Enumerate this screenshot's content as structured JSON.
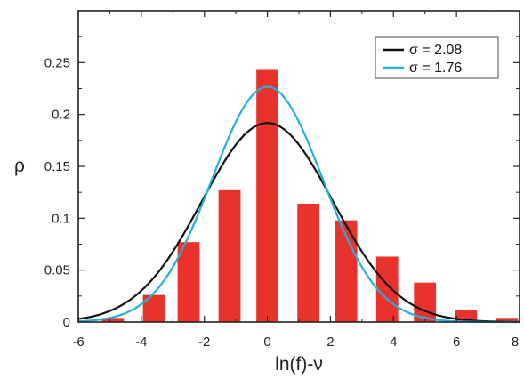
{
  "chart_data": {
    "type": "bar",
    "xlabel": "ln(f)-ν",
    "ylabel": "ρ",
    "xlim": [
      -6,
      8
    ],
    "ylim": [
      0,
      0.3
    ],
    "x_ticks": [
      -6,
      -4,
      -2,
      0,
      2,
      4,
      6,
      8
    ],
    "y_ticks": [
      0,
      0.05,
      0.1,
      0.15,
      0.2,
      0.25
    ],
    "x_tick_labels": [
      "-6",
      "-4",
      "-2",
      "0",
      "2",
      "4",
      "6",
      "8"
    ],
    "y_tick_labels": [
      "0",
      "0.05",
      "0.1",
      "0.15",
      "0.2",
      "0.25"
    ],
    "grid": false,
    "legend_position": "top-right",
    "bars": {
      "color": "#e8322b",
      "bar_width": 0.7,
      "centers": [
        -4.9,
        -3.6,
        -2.5,
        -1.2,
        0.0,
        1.3,
        2.5,
        3.8,
        5.0,
        6.3,
        7.6
      ],
      "values": [
        0.004,
        0.026,
        0.077,
        0.127,
        0.243,
        0.114,
        0.098,
        0.063,
        0.038,
        0.012,
        0.004
      ]
    },
    "series": [
      {
        "name": "σ = 2.08",
        "sigma": 2.08,
        "mu": 0,
        "color": "#111111"
      },
      {
        "name": "σ = 1.76",
        "sigma": 1.76,
        "mu": 0,
        "color": "#1fb1d8"
      }
    ]
  }
}
